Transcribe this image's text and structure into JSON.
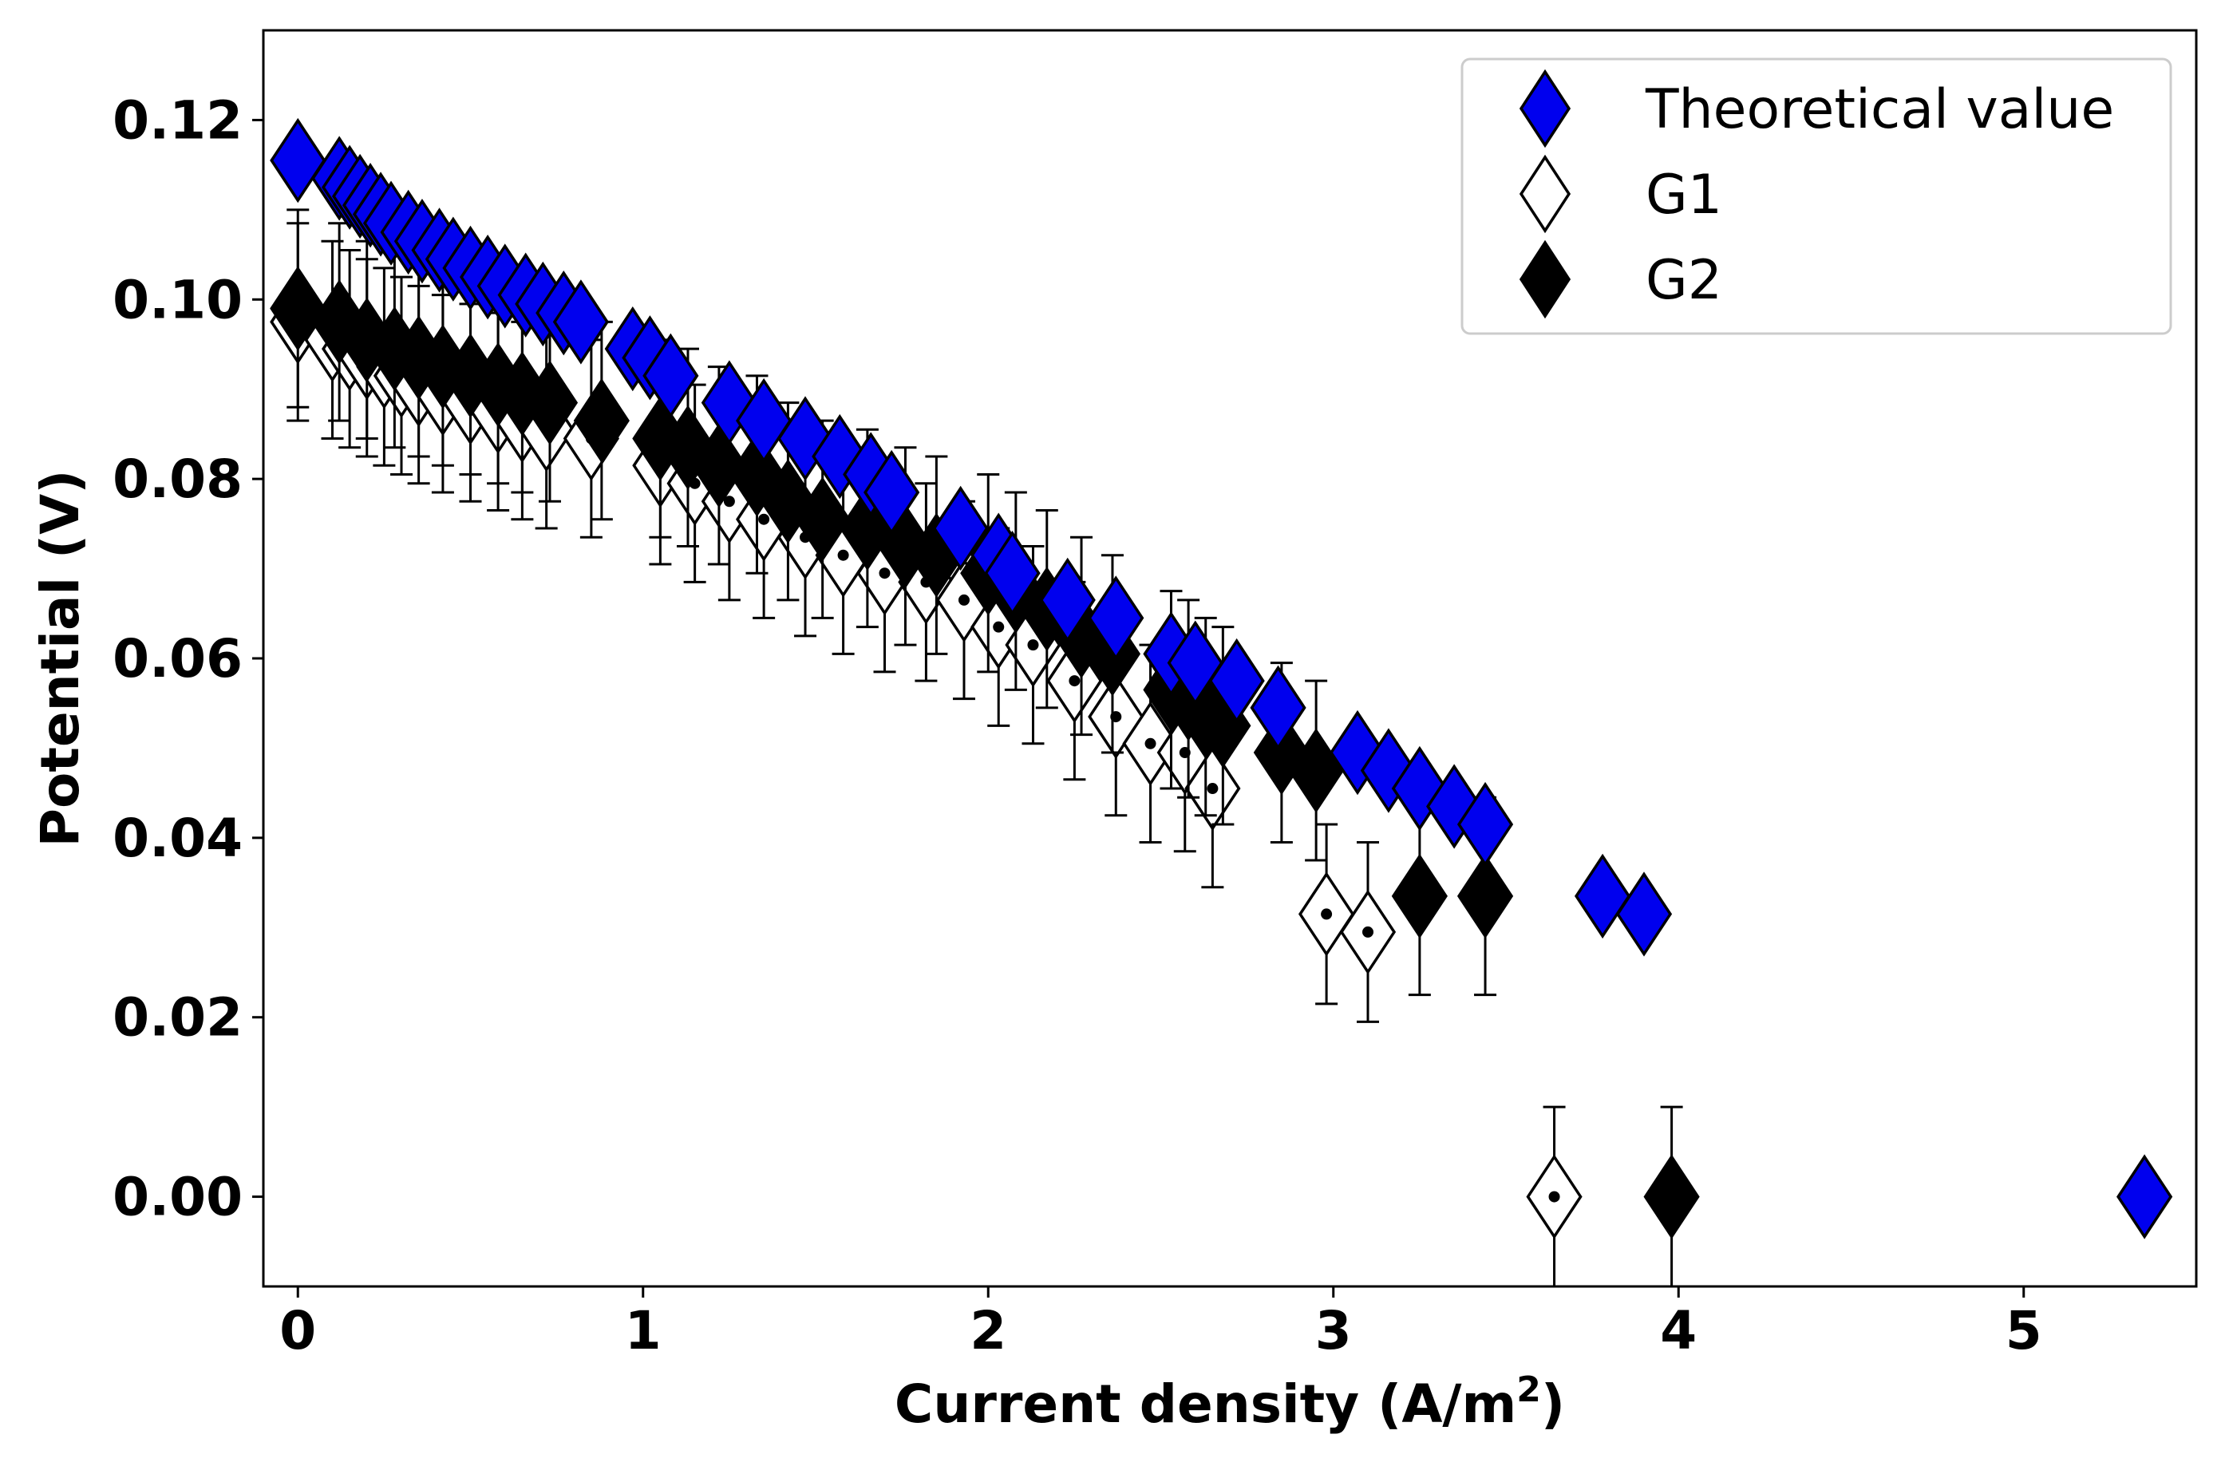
{
  "chart_data": {
    "type": "scatter",
    "title": "",
    "xlabel": "Current density (A/m",
    "xlabel_sup": "2",
    "xlabel_end": ")",
    "ylabel": "Potential (V)",
    "xlim": [
      -0.1,
      5.5
    ],
    "ylim": [
      -0.01,
      0.13
    ],
    "xticks": [
      0,
      1,
      2,
      3,
      4,
      5
    ],
    "xtick_labels": [
      "0",
      "1",
      "2",
      "3",
      "4",
      "5"
    ],
    "yticks": [
      0.0,
      0.02,
      0.04,
      0.06,
      0.08,
      0.1,
      0.12
    ],
    "ytick_labels": [
      "0.00",
      "0.02",
      "0.04",
      "0.06",
      "0.08",
      "0.10",
      "0.12"
    ],
    "grid": false,
    "legend_position": "top-right",
    "series": [
      {
        "name": "Theoretical value",
        "marker": "diamond",
        "fill": "#0000ee",
        "edge": "#000000",
        "x": [
          0.0,
          0.12,
          0.15,
          0.18,
          0.21,
          0.24,
          0.27,
          0.32,
          0.36,
          0.41,
          0.45,
          0.5,
          0.55,
          0.6,
          0.66,
          0.71,
          0.77,
          0.82,
          0.97,
          1.02,
          1.08,
          1.25,
          1.35,
          1.47,
          1.57,
          1.66,
          1.72,
          1.92,
          2.03,
          2.07,
          2.23,
          2.37,
          2.53,
          2.6,
          2.72,
          2.84,
          3.07,
          3.16,
          3.25,
          3.35,
          3.44,
          3.78,
          3.9,
          5.35
        ],
        "y": [
          0.1155,
          0.1135,
          0.1125,
          0.1115,
          0.1105,
          0.1095,
          0.1085,
          0.1075,
          0.1065,
          0.1055,
          0.1045,
          0.1035,
          0.1025,
          0.1015,
          0.1005,
          0.0995,
          0.0985,
          0.0975,
          0.0945,
          0.0935,
          0.0915,
          0.0885,
          0.0865,
          0.0845,
          0.0825,
          0.0805,
          0.0785,
          0.0745,
          0.0715,
          0.0695,
          0.0665,
          0.0645,
          0.0605,
          0.0595,
          0.0575,
          0.0545,
          0.0495,
          0.0475,
          0.0455,
          0.0435,
          0.0415,
          0.0335,
          0.0315,
          0.0
        ]
      },
      {
        "name": "G1",
        "marker": "diamond",
        "fill": "#ffffff",
        "edge": "#000000",
        "x": [
          0.0,
          0.1,
          0.15,
          0.2,
          0.25,
          0.3,
          0.35,
          0.42,
          0.5,
          0.58,
          0.65,
          0.72,
          0.85,
          1.05,
          1.15,
          1.25,
          1.35,
          1.47,
          1.58,
          1.7,
          1.82,
          1.93,
          2.03,
          2.13,
          2.25,
          2.37,
          2.47,
          2.57,
          2.65,
          2.98,
          3.1,
          3.64
        ],
        "y": [
          0.0975,
          0.0955,
          0.0945,
          0.0935,
          0.0925,
          0.0915,
          0.0905,
          0.0895,
          0.0885,
          0.0875,
          0.0865,
          0.0855,
          0.0845,
          0.0815,
          0.0795,
          0.0775,
          0.0755,
          0.0735,
          0.0715,
          0.0695,
          0.0685,
          0.0665,
          0.0635,
          0.0615,
          0.0575,
          0.0535,
          0.0505,
          0.0495,
          0.0455,
          0.0315,
          0.0295,
          0.0
        ],
        "error": [
          0.011,
          0.011,
          0.011,
          0.011,
          0.011,
          0.011,
          0.011,
          0.011,
          0.011,
          0.011,
          0.011,
          0.011,
          0.011,
          0.011,
          0.011,
          0.011,
          0.011,
          0.011,
          0.011,
          0.011,
          0.011,
          0.011,
          0.011,
          0.011,
          0.011,
          0.011,
          0.011,
          0.011,
          0.011,
          0.01,
          0.01,
          0.01
        ]
      },
      {
        "name": "G2",
        "marker": "diamond",
        "fill": "#000000",
        "edge": "#000000",
        "x": [
          0.0,
          0.12,
          0.2,
          0.28,
          0.35,
          0.42,
          0.5,
          0.58,
          0.65,
          0.73,
          0.88,
          1.05,
          1.13,
          1.22,
          1.33,
          1.42,
          1.52,
          1.65,
          1.76,
          1.85,
          2.0,
          2.08,
          2.17,
          2.27,
          2.36,
          2.53,
          2.58,
          2.63,
          2.68,
          2.85,
          2.95,
          3.25,
          3.44,
          3.98
        ],
        "y": [
          0.099,
          0.0975,
          0.0955,
          0.0945,
          0.0935,
          0.0925,
          0.0915,
          0.0905,
          0.0895,
          0.0885,
          0.0865,
          0.0845,
          0.0835,
          0.0815,
          0.0805,
          0.0775,
          0.0755,
          0.0745,
          0.0725,
          0.0715,
          0.0695,
          0.0675,
          0.0655,
          0.0625,
          0.0605,
          0.0565,
          0.0555,
          0.0535,
          0.0525,
          0.0495,
          0.0475,
          0.0335,
          0.0335,
          0.0
        ],
        "error": [
          0.011,
          0.011,
          0.011,
          0.011,
          0.011,
          0.011,
          0.011,
          0.011,
          0.011,
          0.011,
          0.011,
          0.011,
          0.011,
          0.011,
          0.011,
          0.011,
          0.011,
          0.011,
          0.011,
          0.011,
          0.011,
          0.011,
          0.011,
          0.011,
          0.011,
          0.011,
          0.011,
          0.011,
          0.011,
          0.01,
          0.01,
          0.011,
          0.011,
          0.01
        ]
      }
    ]
  }
}
